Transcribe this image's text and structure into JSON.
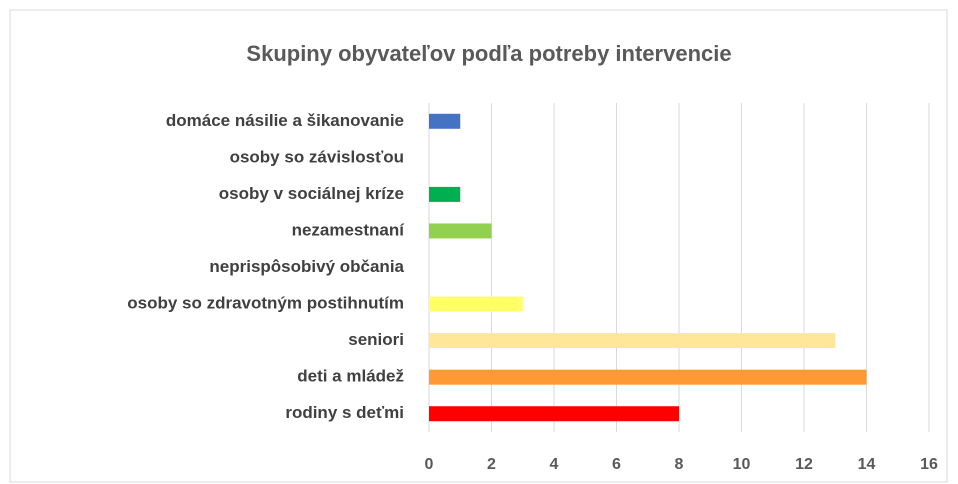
{
  "chart_data": {
    "type": "bar",
    "orientation": "horizontal",
    "title": "Skupiny obyvateľov podľa potreby intervencie",
    "categories": [
      "domáce násilie a šikanovanie",
      "osoby so závislosťou",
      "osoby v sociálnej kríze",
      "nezamestnaní",
      "neprispôsobivý občania",
      "osoby so zdravotným postihnutím",
      "seniori",
      "deti a mládež",
      "rodiny s deťmi"
    ],
    "values": [
      1,
      0,
      1,
      2,
      0,
      3,
      13,
      14,
      8
    ],
    "colors": [
      "#4472c4",
      null,
      "#00b050",
      "#92d050",
      null,
      "#ffff66",
      "#ffe699",
      "#ff9933",
      "#ff0000"
    ],
    "xlim": [
      0,
      16
    ],
    "xticks": [
      0,
      2,
      4,
      6,
      8,
      10,
      12,
      14,
      16
    ],
    "grid": true
  }
}
